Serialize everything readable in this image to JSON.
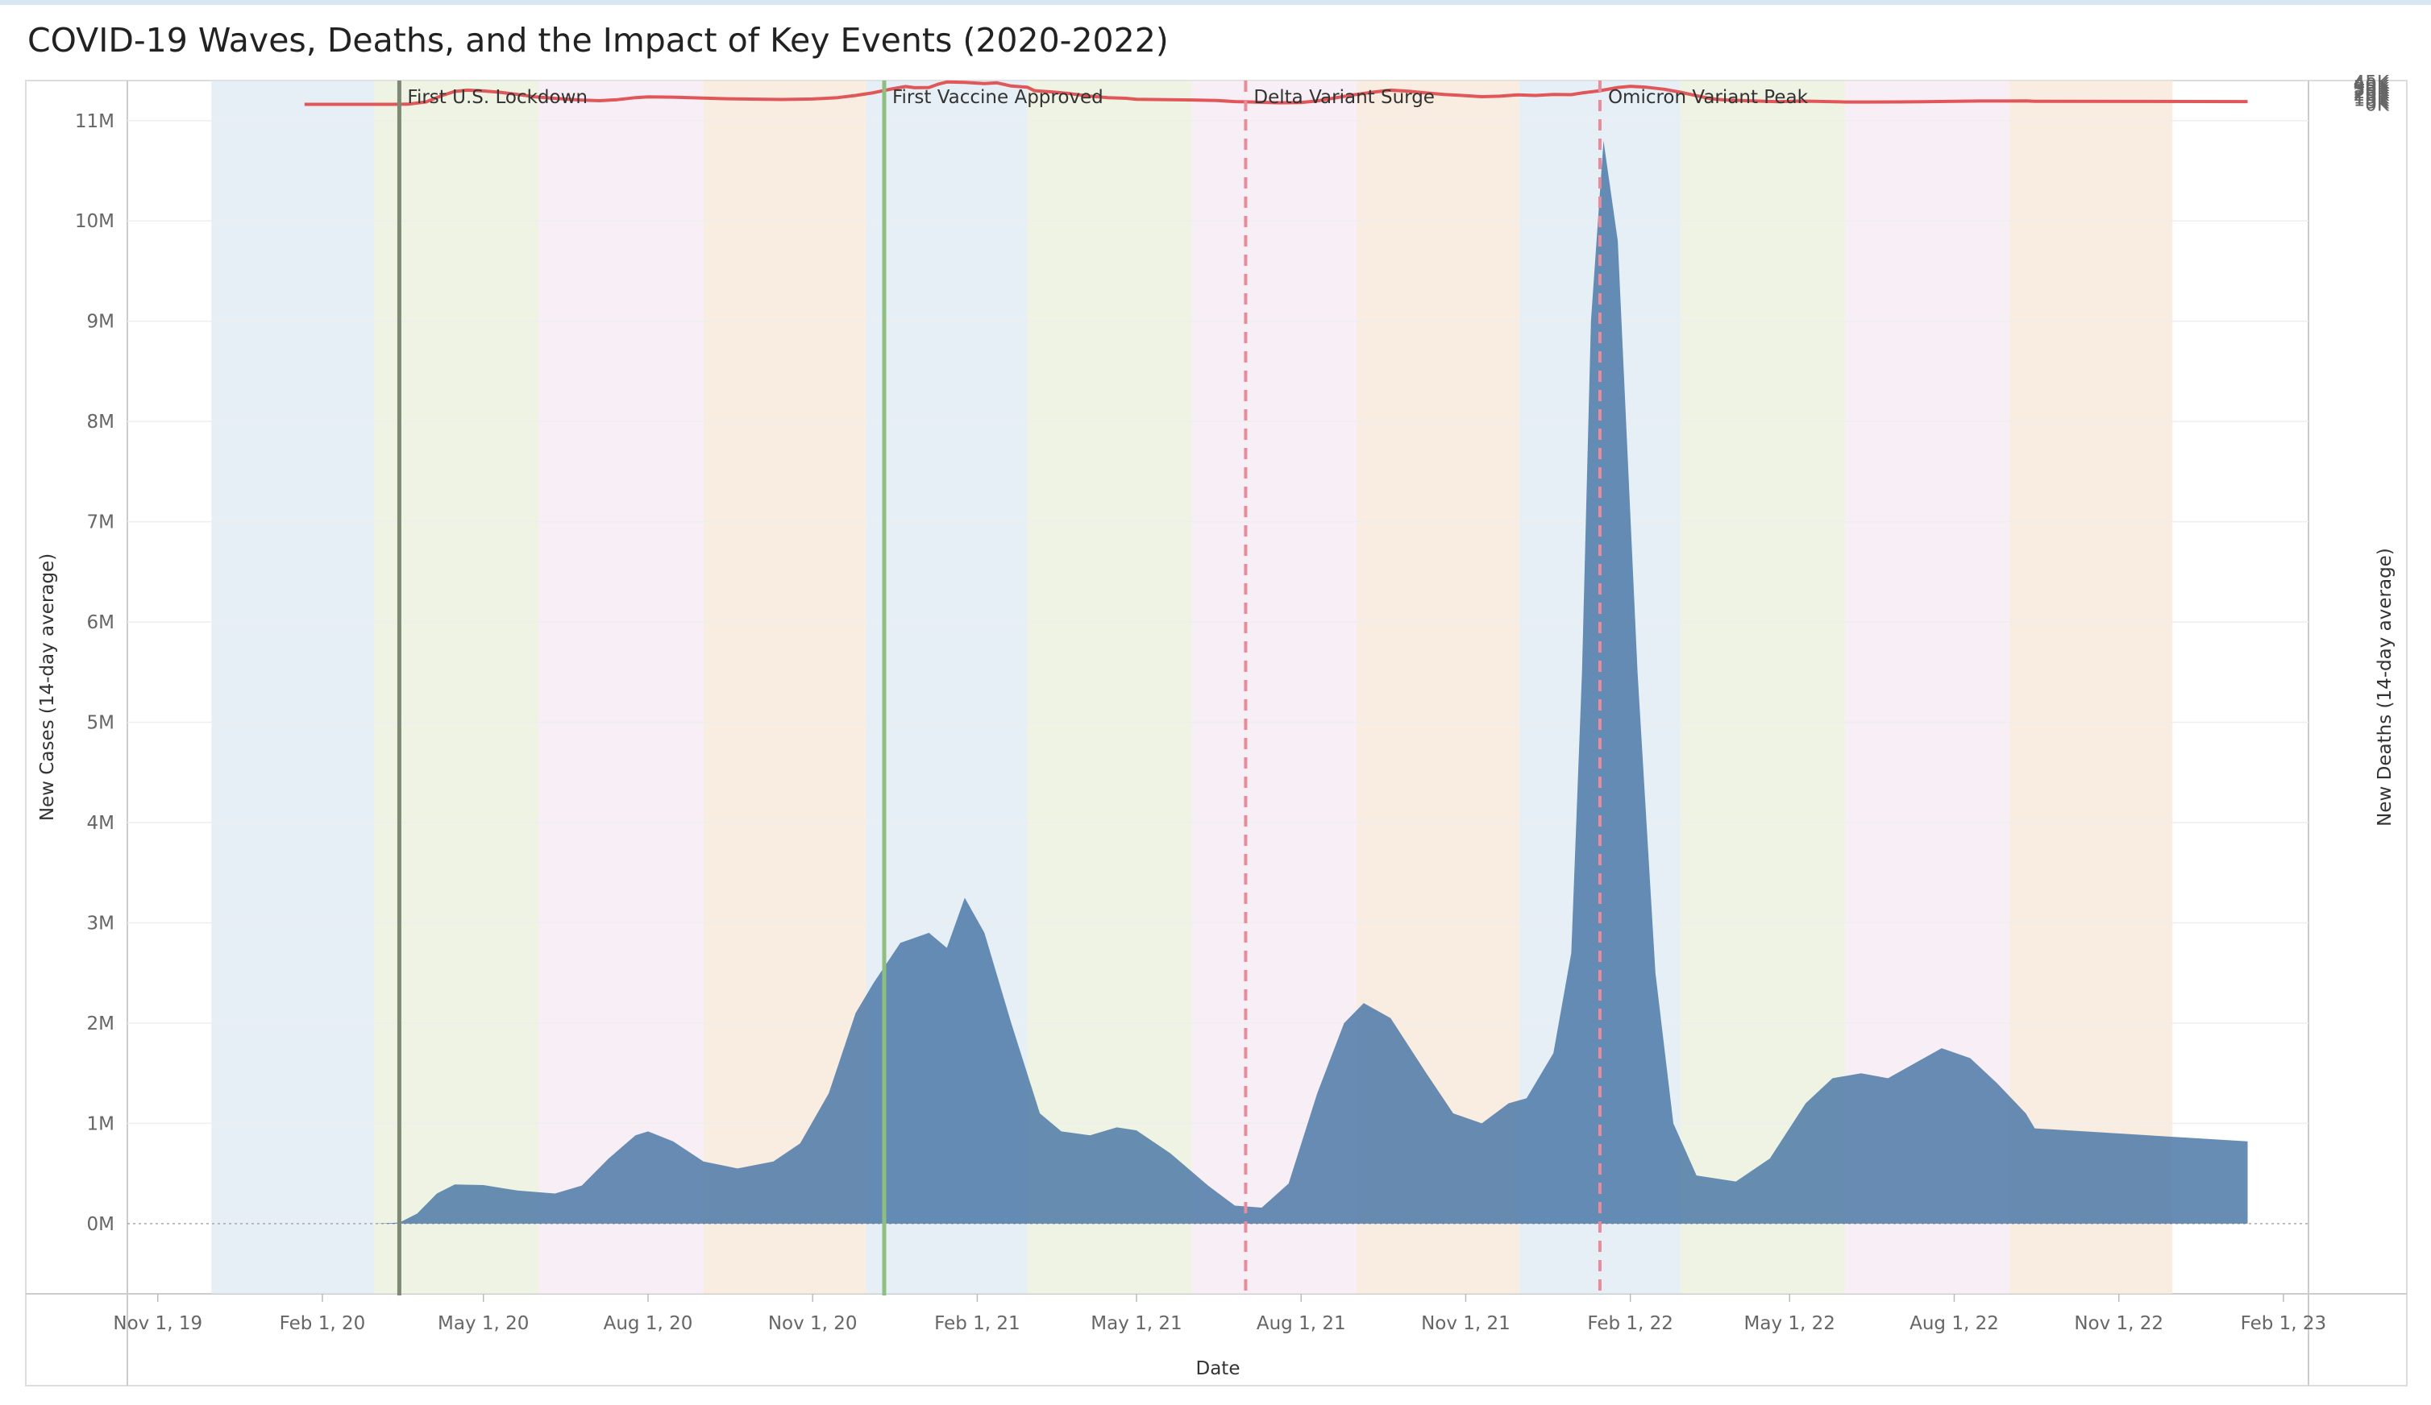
{
  "title": "COVID-19 Waves, Deaths, and the Impact of Key Events (2020-2022)",
  "colors": {
    "cases_fill": "#4e79a7",
    "deaths_line": "#e15759",
    "grid": "#eeeeee",
    "band_colors": [
      "#dce9f1",
      "#e8efd9",
      "#f4e9f1",
      "#f7e6d6"
    ]
  },
  "chart_data": {
    "type": "area",
    "xlabel": "Date",
    "ylabel_left": "New Cases (14-day average)",
    "ylabel_right": "New Deaths (14-day average)",
    "x_range": [
      "2019-10-15",
      "2023-02-15"
    ],
    "y_left_range": [
      -700000,
      11400000
    ],
    "y_right_range": [
      -2400000,
      48000
    ],
    "x_ticks": [
      {
        "date": "2019-11-01",
        "label": "Nov 1, 19"
      },
      {
        "date": "2020-02-01",
        "label": "Feb 1, 20"
      },
      {
        "date": "2020-05-01",
        "label": "May 1, 20"
      },
      {
        "date": "2020-08-01",
        "label": "Aug 1, 20"
      },
      {
        "date": "2020-11-01",
        "label": "Nov 1, 20"
      },
      {
        "date": "2021-02-01",
        "label": "Feb 1, 21"
      },
      {
        "date": "2021-05-01",
        "label": "May 1, 21"
      },
      {
        "date": "2021-08-01",
        "label": "Aug 1, 21"
      },
      {
        "date": "2021-11-01",
        "label": "Nov 1, 21"
      },
      {
        "date": "2022-02-01",
        "label": "Feb 1, 22"
      },
      {
        "date": "2022-05-01",
        "label": "May 1, 22"
      },
      {
        "date": "2022-08-01",
        "label": "Aug 1, 22"
      },
      {
        "date": "2022-11-01",
        "label": "Nov 1, 22"
      },
      {
        "date": "2023-02-01",
        "label": "Feb 1, 23"
      }
    ],
    "y_left_ticks": [
      {
        "value": 0,
        "label": "0M"
      },
      {
        "value": 1000000,
        "label": "1M"
      },
      {
        "value": 2000000,
        "label": "2M"
      },
      {
        "value": 3000000,
        "label": "3M"
      },
      {
        "value": 4000000,
        "label": "4M"
      },
      {
        "value": 5000000,
        "label": "5M"
      },
      {
        "value": 6000000,
        "label": "6M"
      },
      {
        "value": 7000000,
        "label": "7M"
      },
      {
        "value": 8000000,
        "label": "8M"
      },
      {
        "value": 9000000,
        "label": "9M"
      },
      {
        "value": 10000000,
        "label": "10M"
      },
      {
        "value": 11000000,
        "label": "11M"
      }
    ],
    "y_right_ticks": [
      {
        "value": 0,
        "label": "0K"
      },
      {
        "value": 5000,
        "label": "5K"
      },
      {
        "value": 10000,
        "label": "10K"
      },
      {
        "value": 15000,
        "label": "15K"
      },
      {
        "value": 20000,
        "label": "20K"
      },
      {
        "value": 25000,
        "label": "25K"
      },
      {
        "value": 30000,
        "label": "30K"
      },
      {
        "value": 35000,
        "label": "35K"
      },
      {
        "value": 40000,
        "label": "40K"
      },
      {
        "value": 45000,
        "label": "45K"
      }
    ],
    "season_bands": [
      {
        "start": "2019-12-01",
        "end": "2020-03-01",
        "color": "#dce9f1"
      },
      {
        "start": "2020-03-01",
        "end": "2020-06-01",
        "color": "#e8efd9"
      },
      {
        "start": "2020-06-01",
        "end": "2020-09-01",
        "color": "#f4e9f1"
      },
      {
        "start": "2020-09-01",
        "end": "2020-12-01",
        "color": "#f7e6d6"
      },
      {
        "start": "2020-12-01",
        "end": "2021-03-01",
        "color": "#dce9f1"
      },
      {
        "start": "2021-03-01",
        "end": "2021-06-01",
        "color": "#e8efd9"
      },
      {
        "start": "2021-06-01",
        "end": "2021-09-01",
        "color": "#f4e9f1"
      },
      {
        "start": "2021-09-01",
        "end": "2021-12-01",
        "color": "#f7e6d6"
      },
      {
        "start": "2021-12-01",
        "end": "2022-03-01",
        "color": "#dce9f1"
      },
      {
        "start": "2022-03-01",
        "end": "2022-06-01",
        "color": "#e8efd9"
      },
      {
        "start": "2022-06-01",
        "end": "2022-09-01",
        "color": "#f4e9f1"
      },
      {
        "start": "2022-09-01",
        "end": "2022-12-01",
        "color": "#f7e6d6"
      }
    ],
    "events": [
      {
        "date": "2020-03-15",
        "label": "First U.S. Lockdown",
        "color": "#7f8a74",
        "style": "solid"
      },
      {
        "date": "2020-12-11",
        "label": "First Vaccine Approved",
        "color": "#8fbf80",
        "style": "solid"
      },
      {
        "date": "2021-07-01",
        "label": "Delta Variant Surge",
        "color": "#e88b9a",
        "style": "dashed"
      },
      {
        "date": "2022-01-15",
        "label": "Omicron Variant Peak",
        "color": "#e88b9a",
        "style": "dashed"
      }
    ],
    "series": [
      {
        "name": "New Cases (14-day average)",
        "kind": "area",
        "axis": "left",
        "points": [
          [
            "2020-01-22",
            0
          ],
          [
            "2020-03-01",
            0
          ],
          [
            "2020-03-15",
            10000
          ],
          [
            "2020-03-25",
            100000
          ],
          [
            "2020-04-05",
            300000
          ],
          [
            "2020-04-15",
            390000
          ],
          [
            "2020-05-01",
            385000
          ],
          [
            "2020-05-20",
            330000
          ],
          [
            "2020-06-10",
            300000
          ],
          [
            "2020-06-25",
            380000
          ],
          [
            "2020-07-10",
            650000
          ],
          [
            "2020-07-25",
            880000
          ],
          [
            "2020-08-01",
            920000
          ],
          [
            "2020-08-15",
            820000
          ],
          [
            "2020-09-01",
            620000
          ],
          [
            "2020-09-20",
            550000
          ],
          [
            "2020-10-10",
            620000
          ],
          [
            "2020-10-25",
            800000
          ],
          [
            "2020-11-10",
            1300000
          ],
          [
            "2020-11-25",
            2100000
          ],
          [
            "2020-12-05",
            2400000
          ],
          [
            "2020-12-20",
            2800000
          ],
          [
            "2021-01-05",
            2900000
          ],
          [
            "2021-01-15",
            2750000
          ],
          [
            "2021-01-25",
            3250000
          ],
          [
            "2021-02-05",
            2900000
          ],
          [
            "2021-02-20",
            2000000
          ],
          [
            "2021-03-08",
            1100000
          ],
          [
            "2021-03-20",
            920000
          ],
          [
            "2021-04-05",
            880000
          ],
          [
            "2021-04-20",
            960000
          ],
          [
            "2021-05-01",
            930000
          ],
          [
            "2021-05-20",
            700000
          ],
          [
            "2021-06-10",
            380000
          ],
          [
            "2021-06-25",
            180000
          ],
          [
            "2021-07-10",
            160000
          ],
          [
            "2021-07-25",
            400000
          ],
          [
            "2021-08-10",
            1300000
          ],
          [
            "2021-08-25",
            2000000
          ],
          [
            "2021-09-05",
            2200000
          ],
          [
            "2021-09-20",
            2050000
          ],
          [
            "2021-10-10",
            1500000
          ],
          [
            "2021-10-25",
            1100000
          ],
          [
            "2021-11-10",
            1000000
          ],
          [
            "2021-11-25",
            1200000
          ],
          [
            "2021-12-05",
            1250000
          ],
          [
            "2021-12-20",
            1700000
          ],
          [
            "2021-12-30",
            2700000
          ],
          [
            "2022-01-05",
            5500000
          ],
          [
            "2022-01-10",
            9000000
          ],
          [
            "2022-01-17",
            10800000
          ],
          [
            "2022-01-25",
            9800000
          ],
          [
            "2022-02-05",
            5500000
          ],
          [
            "2022-02-15",
            2500000
          ],
          [
            "2022-02-25",
            1000000
          ],
          [
            "2022-03-10",
            480000
          ],
          [
            "2022-04-01",
            420000
          ],
          [
            "2022-04-20",
            650000
          ],
          [
            "2022-05-10",
            1200000
          ],
          [
            "2022-05-25",
            1450000
          ],
          [
            "2022-06-10",
            1500000
          ],
          [
            "2022-06-25",
            1450000
          ],
          [
            "2022-07-10",
            1600000
          ],
          [
            "2022-07-25",
            1750000
          ],
          [
            "2022-08-10",
            1650000
          ],
          [
            "2022-08-25",
            1400000
          ],
          [
            "2022-09-10",
            1100000
          ],
          [
            "2022-09-15",
            950000
          ],
          [
            "2023-01-12",
            820000
          ]
        ]
      },
      {
        "name": "New Deaths (14-day average)",
        "kind": "line",
        "axis": "right",
        "points": [
          [
            "2020-01-22",
            0
          ],
          [
            "2020-03-10",
            0
          ],
          [
            "2020-03-20",
            300
          ],
          [
            "2020-03-30",
            5000
          ],
          [
            "2020-04-08",
            18000
          ],
          [
            "2020-04-15",
            26000
          ],
          [
            "2020-04-22",
            28600
          ],
          [
            "2020-05-01",
            27000
          ],
          [
            "2020-05-10",
            24500
          ],
          [
            "2020-05-20",
            20000
          ],
          [
            "2020-05-30",
            15000
          ],
          [
            "2020-06-10",
            12000
          ],
          [
            "2020-06-25",
            8500
          ],
          [
            "2020-07-05",
            7300
          ],
          [
            "2020-07-15",
            9500
          ],
          [
            "2020-07-25",
            13500
          ],
          [
            "2020-08-01",
            15200
          ],
          [
            "2020-08-15",
            14500
          ],
          [
            "2020-09-01",
            12500
          ],
          [
            "2020-09-15",
            11300
          ],
          [
            "2020-10-01",
            10500
          ],
          [
            "2020-10-15",
            9800
          ],
          [
            "2020-11-01",
            10700
          ],
          [
            "2020-11-15",
            13500
          ],
          [
            "2020-11-25",
            18000
          ],
          [
            "2020-12-05",
            23500
          ],
          [
            "2020-12-15",
            31000
          ],
          [
            "2020-12-23",
            36000
          ],
          [
            "2020-12-28",
            33500
          ],
          [
            "2021-01-05",
            34000
          ],
          [
            "2021-01-10",
            40500
          ],
          [
            "2021-01-15",
            45000
          ],
          [
            "2021-01-25",
            44500
          ],
          [
            "2021-02-05",
            42000
          ],
          [
            "2021-02-12",
            43500
          ],
          [
            "2021-02-20",
            37000
          ],
          [
            "2021-03-01",
            34500
          ],
          [
            "2021-03-05",
            27500
          ],
          [
            "2021-03-15",
            25000
          ],
          [
            "2021-03-25",
            21500
          ],
          [
            "2021-04-05",
            16500
          ],
          [
            "2021-04-15",
            13500
          ],
          [
            "2021-04-25",
            12300
          ],
          [
            "2021-05-01",
            10300
          ],
          [
            "2021-05-15",
            9600
          ],
          [
            "2021-06-01",
            8800
          ],
          [
            "2021-06-15",
            7700
          ],
          [
            "2021-06-25",
            5500
          ],
          [
            "2021-07-05",
            4800
          ],
          [
            "2021-07-20",
            3200
          ],
          [
            "2021-08-01",
            3800
          ],
          [
            "2021-08-10",
            6800
          ],
          [
            "2021-08-20",
            13000
          ],
          [
            "2021-08-30",
            19000
          ],
          [
            "2021-09-10",
            24500
          ],
          [
            "2021-09-20",
            28600
          ],
          [
            "2021-09-30",
            26500
          ],
          [
            "2021-10-10",
            23000
          ],
          [
            "2021-10-20",
            20000
          ],
          [
            "2021-10-30",
            18000
          ],
          [
            "2021-11-10",
            15500
          ],
          [
            "2021-11-20",
            16500
          ],
          [
            "2021-11-30",
            19000
          ],
          [
            "2021-12-10",
            18000
          ],
          [
            "2021-12-20",
            20000
          ],
          [
            "2021-12-30",
            19500
          ],
          [
            "2022-01-05",
            23000
          ],
          [
            "2022-01-15",
            27500
          ],
          [
            "2022-01-25",
            34000
          ],
          [
            "2022-02-01",
            36500
          ],
          [
            "2022-02-10",
            34500
          ],
          [
            "2022-02-20",
            30500
          ],
          [
            "2022-03-01",
            24500
          ],
          [
            "2022-03-10",
            17500
          ],
          [
            "2022-03-18",
            11500
          ],
          [
            "2022-03-25",
            9000
          ],
          [
            "2022-04-10",
            6800
          ],
          [
            "2022-04-25",
            5300
          ],
          [
            "2022-05-05",
            6500
          ],
          [
            "2022-05-15",
            6000
          ],
          [
            "2022-06-01",
            4800
          ],
          [
            "2022-06-15",
            4700
          ],
          [
            "2022-07-01",
            5000
          ],
          [
            "2022-07-15",
            5300
          ],
          [
            "2022-08-01",
            6200
          ],
          [
            "2022-08-15",
            6700
          ],
          [
            "2022-09-01",
            6700
          ],
          [
            "2022-09-10",
            6900
          ],
          [
            "2022-09-15",
            6300
          ],
          [
            "2023-01-12",
            5600
          ]
        ]
      }
    ],
    "grid": true,
    "legend": "none"
  }
}
